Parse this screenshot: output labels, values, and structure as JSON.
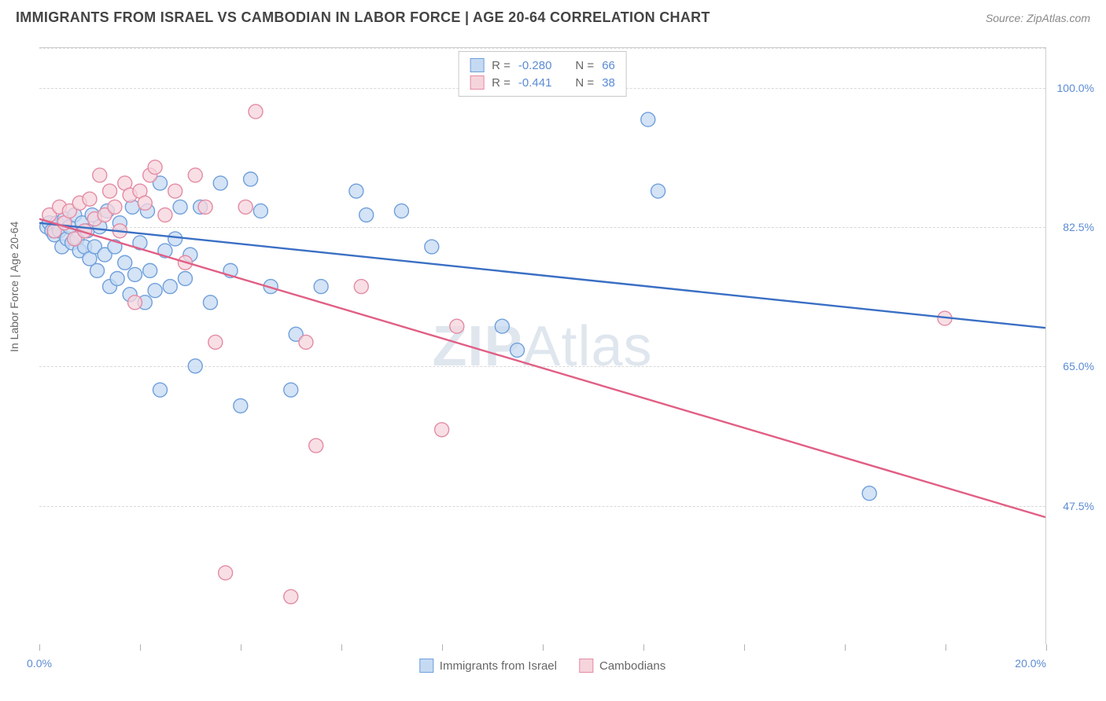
{
  "title": "IMMIGRANTS FROM ISRAEL VS CAMBODIAN IN LABOR FORCE | AGE 20-64 CORRELATION CHART",
  "source": "Source: ZipAtlas.com",
  "ylabel": "In Labor Force | Age 20-64",
  "watermark_a": "ZIP",
  "watermark_b": "Atlas",
  "chart": {
    "type": "scatter",
    "xlim": [
      0,
      20
    ],
    "ylim": [
      30,
      105
    ],
    "background_color": "#ffffff",
    "grid_color": "#d8d8d8",
    "y_gridlines": [
      47.5,
      65.0,
      82.5,
      100.0
    ],
    "ytick_labels": [
      "47.5%",
      "65.0%",
      "82.5%",
      "100.0%"
    ],
    "xtick_positions": [
      0,
      2,
      4,
      6,
      8,
      10,
      12,
      14,
      16,
      18,
      20
    ],
    "xtick_labels_shown": {
      "0": "0.0%",
      "20": "20.0%"
    },
    "marker_radius": 9,
    "marker_stroke_width": 1.4,
    "line_width": 2.4,
    "series": [
      {
        "name": "Immigrants from Israel",
        "key": "israel",
        "fill": "#c5daf2",
        "stroke": "#6f9fdc",
        "line_color": "#3a6fc4",
        "R": "-0.280",
        "N": "66",
        "regression": {
          "x1": 0,
          "y1": 83.0,
          "x2": 20,
          "y2": 69.8
        },
        "points": [
          [
            0.15,
            82.5
          ],
          [
            0.2,
            83.0
          ],
          [
            0.25,
            82.0
          ],
          [
            0.3,
            81.5
          ],
          [
            0.35,
            83.0
          ],
          [
            0.4,
            82.0
          ],
          [
            0.45,
            80.0
          ],
          [
            0.5,
            83.5
          ],
          [
            0.55,
            81.0
          ],
          [
            0.6,
            82.5
          ],
          [
            0.65,
            80.5
          ],
          [
            0.7,
            84.0
          ],
          [
            0.75,
            81.0
          ],
          [
            0.8,
            79.5
          ],
          [
            0.85,
            83.0
          ],
          [
            0.9,
            80.0
          ],
          [
            0.95,
            82.0
          ],
          [
            1.0,
            78.5
          ],
          [
            1.05,
            84.0
          ],
          [
            1.1,
            80.0
          ],
          [
            1.15,
            77.0
          ],
          [
            1.2,
            82.5
          ],
          [
            1.3,
            79.0
          ],
          [
            1.35,
            84.5
          ],
          [
            1.4,
            75.0
          ],
          [
            1.5,
            80.0
          ],
          [
            1.55,
            76.0
          ],
          [
            1.6,
            83.0
          ],
          [
            1.7,
            78.0
          ],
          [
            1.8,
            74.0
          ],
          [
            1.85,
            85.0
          ],
          [
            1.9,
            76.5
          ],
          [
            2.0,
            80.5
          ],
          [
            2.1,
            73.0
          ],
          [
            2.15,
            84.5
          ],
          [
            2.2,
            77.0
          ],
          [
            2.3,
            74.5
          ],
          [
            2.4,
            88.0
          ],
          [
            2.5,
            79.5
          ],
          [
            2.6,
            75.0
          ],
          [
            2.7,
            81.0
          ],
          [
            2.8,
            85.0
          ],
          [
            2.9,
            76.0
          ],
          [
            3.0,
            79.0
          ],
          [
            3.1,
            65.0
          ],
          [
            3.2,
            85.0
          ],
          [
            3.4,
            73.0
          ],
          [
            3.6,
            88.0
          ],
          [
            3.8,
            77.0
          ],
          [
            4.0,
            60.0
          ],
          [
            4.2,
            88.5
          ],
          [
            4.4,
            84.5
          ],
          [
            4.6,
            75.0
          ],
          [
            5.0,
            62.0
          ],
          [
            5.1,
            69.0
          ],
          [
            5.6,
            75.0
          ],
          [
            6.3,
            87.0
          ],
          [
            6.5,
            84.0
          ],
          [
            7.2,
            84.5
          ],
          [
            7.8,
            80.0
          ],
          [
            9.2,
            70.0
          ],
          [
            9.5,
            67.0
          ],
          [
            12.1,
            96.0
          ],
          [
            12.3,
            87.0
          ],
          [
            16.5,
            49.0
          ],
          [
            2.4,
            62.0
          ]
        ]
      },
      {
        "name": "Cambodians",
        "key": "cambodia",
        "fill": "#f6d4dc",
        "stroke": "#e48ba3",
        "line_color": "#e15f85",
        "R": "-0.441",
        "N": "38",
        "regression": {
          "x1": 0,
          "y1": 83.5,
          "x2": 20,
          "y2": 46.0
        },
        "points": [
          [
            0.2,
            84.0
          ],
          [
            0.3,
            82.0
          ],
          [
            0.4,
            85.0
          ],
          [
            0.5,
            83.0
          ],
          [
            0.6,
            84.5
          ],
          [
            0.7,
            81.0
          ],
          [
            0.8,
            85.5
          ],
          [
            0.9,
            82.0
          ],
          [
            1.0,
            86.0
          ],
          [
            1.1,
            83.5
          ],
          [
            1.2,
            89.0
          ],
          [
            1.3,
            84.0
          ],
          [
            1.4,
            87.0
          ],
          [
            1.5,
            85.0
          ],
          [
            1.6,
            82.0
          ],
          [
            1.7,
            88.0
          ],
          [
            1.8,
            86.5
          ],
          [
            1.9,
            73.0
          ],
          [
            2.0,
            87.0
          ],
          [
            2.1,
            85.5
          ],
          [
            2.2,
            89.0
          ],
          [
            2.3,
            90.0
          ],
          [
            2.5,
            84.0
          ],
          [
            2.7,
            87.0
          ],
          [
            2.9,
            78.0
          ],
          [
            3.1,
            89.0
          ],
          [
            3.3,
            85.0
          ],
          [
            3.5,
            68.0
          ],
          [
            3.7,
            39.0
          ],
          [
            4.1,
            85.0
          ],
          [
            4.3,
            97.0
          ],
          [
            5.0,
            36.0
          ],
          [
            5.3,
            68.0
          ],
          [
            5.5,
            55.0
          ],
          [
            6.4,
            75.0
          ],
          [
            8.0,
            57.0
          ],
          [
            8.3,
            70.0
          ],
          [
            18.0,
            71.0
          ]
        ]
      }
    ]
  },
  "stats_legend": {
    "R_label": "R =",
    "N_label": "N ="
  },
  "bottom_legend": {
    "israel": "Immigrants from Israel",
    "cambodia": "Cambodians"
  }
}
